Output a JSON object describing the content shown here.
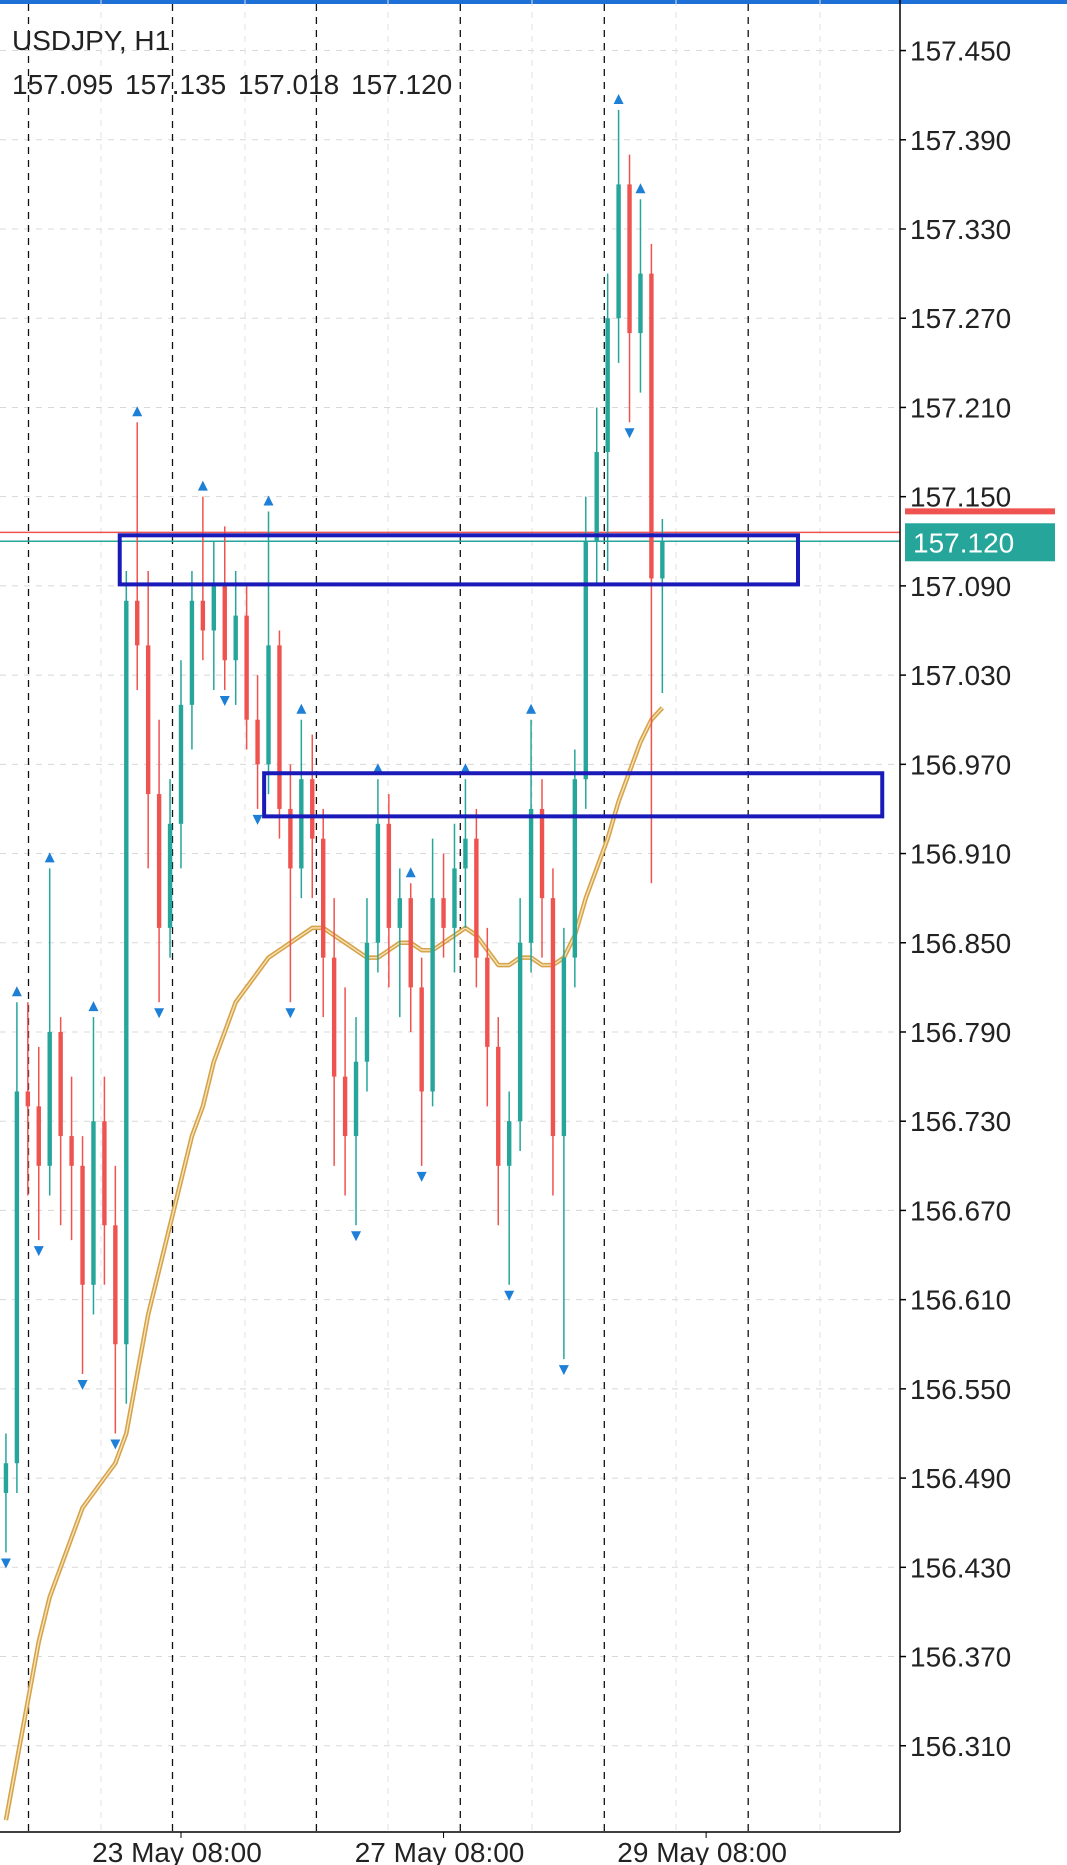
{
  "chart_data": {
    "type": "candlestick",
    "title": "USDJPY, H1",
    "header_values": [
      "157.095",
      "157.135",
      "157.018",
      "157.120"
    ],
    "categories": [
      null,
      null,
      null,
      null,
      null,
      null,
      null,
      null,
      null,
      null,
      null,
      null,
      null,
      null,
      null,
      null,
      "23 May 08:00",
      null,
      null,
      null,
      null,
      null,
      null,
      null,
      null,
      null,
      null,
      null,
      null,
      null,
      null,
      null,
      null,
      null,
      null,
      null,
      null,
      null,
      null,
      null,
      "27 May 08:00",
      null,
      null,
      null,
      null,
      null,
      null,
      null,
      null,
      null,
      null,
      null,
      null,
      null,
      null,
      null,
      null,
      null,
      null,
      null,
      null,
      null,
      null,
      null,
      "29 May 08:00"
    ],
    "open": [
      156.48,
      156.5,
      156.75,
      156.74,
      156.7,
      156.79,
      156.72,
      156.7,
      156.62,
      156.73,
      156.66,
      156.58,
      157.08,
      157.05,
      156.95,
      156.86,
      156.93,
      157.01,
      157.08,
      157.06,
      157.09,
      157.04,
      157.07,
      157.0,
      156.97,
      157.05,
      156.94,
      156.9,
      156.96,
      156.92,
      156.84,
      156.76,
      156.72,
      156.77,
      156.85,
      156.93,
      156.86,
      156.88,
      156.82,
      156.75,
      156.88,
      156.86,
      156.9,
      156.92,
      156.84,
      156.78,
      156.7,
      156.73,
      156.85,
      156.94,
      156.88,
      156.72,
      156.84,
      156.96,
      157.12,
      157.18,
      157.27,
      157.36,
      157.26,
      157.3,
      157.095,
      null,
      null,
      null,
      null
    ],
    "high": [
      156.52,
      156.81,
      156.81,
      156.78,
      156.9,
      156.8,
      156.76,
      156.72,
      156.8,
      156.76,
      156.7,
      157.1,
      157.2,
      157.1,
      157.0,
      156.96,
      157.04,
      157.1,
      157.15,
      157.12,
      157.13,
      157.1,
      157.09,
      157.03,
      157.14,
      157.06,
      156.97,
      157.0,
      156.99,
      156.94,
      156.88,
      156.82,
      156.8,
      156.88,
      156.96,
      156.95,
      156.9,
      156.89,
      156.84,
      156.92,
      156.91,
      156.93,
      156.96,
      156.94,
      156.86,
      156.8,
      156.75,
      156.88,
      157.0,
      156.96,
      156.9,
      156.86,
      156.98,
      157.15,
      157.21,
      157.3,
      157.41,
      157.38,
      157.35,
      157.32,
      157.135,
      null,
      null,
      null,
      null
    ],
    "low": [
      156.44,
      156.48,
      156.68,
      156.65,
      156.68,
      156.66,
      156.65,
      156.56,
      156.6,
      156.62,
      156.52,
      156.54,
      157.02,
      156.9,
      156.81,
      156.84,
      156.9,
      156.98,
      157.04,
      157.02,
      157.02,
      157.01,
      156.98,
      156.94,
      156.95,
      156.92,
      156.81,
      156.88,
      156.88,
      156.8,
      156.7,
      156.68,
      156.66,
      156.75,
      156.83,
      156.82,
      156.8,
      156.79,
      156.7,
      156.74,
      156.84,
      156.83,
      156.86,
      156.82,
      156.74,
      156.66,
      156.62,
      156.71,
      156.83,
      156.84,
      156.68,
      156.57,
      156.82,
      156.94,
      157.09,
      157.1,
      157.24,
      157.2,
      157.22,
      156.89,
      157.018,
      null,
      null,
      null,
      null
    ],
    "close": [
      156.5,
      156.75,
      156.74,
      156.7,
      156.79,
      156.72,
      156.7,
      156.62,
      156.73,
      156.66,
      156.58,
      157.08,
      157.05,
      156.95,
      156.86,
      156.93,
      157.01,
      157.08,
      157.06,
      157.09,
      157.04,
      157.07,
      157.0,
      156.97,
      157.05,
      156.94,
      156.9,
      156.96,
      156.92,
      156.84,
      156.76,
      156.72,
      156.77,
      156.85,
      156.93,
      156.86,
      156.88,
      156.82,
      156.75,
      156.88,
      156.86,
      156.9,
      156.92,
      156.84,
      156.78,
      156.7,
      156.73,
      156.85,
      156.94,
      156.88,
      156.72,
      156.84,
      156.96,
      157.12,
      157.18,
      157.27,
      157.36,
      157.26,
      157.3,
      157.095,
      157.12,
      null,
      null,
      null,
      null
    ],
    "up_color": "#26a69a",
    "down_color": "#ef5350",
    "ma": {
      "color": "#d6a24a",
      "values": [
        156.26,
        156.3,
        156.34,
        156.38,
        156.41,
        156.43,
        156.45,
        156.47,
        156.48,
        156.49,
        156.5,
        156.52,
        156.56,
        156.6,
        156.63,
        156.66,
        156.69,
        156.72,
        156.74,
        156.77,
        156.79,
        156.81,
        156.82,
        156.83,
        156.84,
        156.845,
        156.85,
        156.855,
        156.86,
        156.86,
        156.855,
        156.85,
        156.845,
        156.84,
        156.84,
        156.845,
        156.85,
        156.85,
        156.845,
        156.845,
        156.85,
        156.855,
        156.86,
        156.855,
        156.845,
        156.835,
        156.835,
        156.84,
        156.84,
        156.835,
        156.835,
        156.84,
        156.855,
        156.88,
        156.9,
        156.92,
        156.945,
        156.965,
        156.985,
        157.0,
        157.008,
        null,
        null,
        null,
        null
      ]
    },
    "fractals_up": [
      null,
      156.81,
      null,
      null,
      156.9,
      null,
      null,
      null,
      156.8,
      null,
      null,
      null,
      157.2,
      null,
      null,
      null,
      null,
      null,
      157.15,
      null,
      null,
      null,
      null,
      null,
      157.14,
      null,
      null,
      157.0,
      null,
      null,
      null,
      null,
      null,
      null,
      156.96,
      null,
      null,
      156.89,
      null,
      null,
      null,
      null,
      156.96,
      null,
      null,
      null,
      null,
      null,
      157.0,
      null,
      null,
      null,
      null,
      null,
      null,
      null,
      157.41,
      null,
      157.35,
      null,
      null,
      null,
      null,
      null,
      null
    ],
    "fractals_down": [
      156.44,
      null,
      null,
      156.65,
      null,
      null,
      null,
      156.56,
      null,
      null,
      156.52,
      null,
      null,
      null,
      156.81,
      null,
      null,
      null,
      null,
      null,
      157.02,
      null,
      null,
      156.94,
      null,
      null,
      156.81,
      null,
      null,
      null,
      null,
      null,
      156.66,
      null,
      null,
      null,
      null,
      null,
      156.7,
      null,
      null,
      null,
      null,
      null,
      null,
      null,
      156.62,
      null,
      null,
      null,
      null,
      156.57,
      null,
      null,
      null,
      null,
      null,
      157.2,
      null,
      null,
      null,
      null,
      null,
      null,
      null
    ],
    "fractal_color": "#1e7fd6",
    "bid": 157.12,
    "bid_label": "157.120",
    "bid_color": "#26a69a",
    "ask": 157.126,
    "ask_color": "#ef5350",
    "zones": [
      {
        "x": [
          10.4,
          72.4
        ],
        "y": [
          157.091,
          157.124
        ],
        "color": "#1a1ab8"
      },
      {
        "x": [
          23.6,
          80.1
        ],
        "y": [
          156.935,
          156.964
        ],
        "color": "#1a1ab8"
      }
    ],
    "ylim": [
      156.252,
      157.484
    ],
    "yticks": [
      {
        "value": 157.45,
        "label": "157.450"
      },
      {
        "value": 157.39,
        "label": "157.390"
      },
      {
        "value": 157.33,
        "label": "157.330"
      },
      {
        "value": 157.27,
        "label": "157.270"
      },
      {
        "value": 157.21,
        "label": "157.210"
      },
      {
        "value": 157.15,
        "label": "157.150"
      },
      {
        "value": 157.09,
        "label": "157.090"
      },
      {
        "value": 157.03,
        "label": "157.030"
      },
      {
        "value": 156.97,
        "label": "156.970"
      },
      {
        "value": 156.91,
        "label": "156.910"
      },
      {
        "value": 156.85,
        "label": "156.850"
      },
      {
        "value": 156.79,
        "label": "156.790"
      },
      {
        "value": 156.73,
        "label": "156.730"
      },
      {
        "value": 156.67,
        "label": "156.670"
      },
      {
        "value": 156.61,
        "label": "156.610"
      },
      {
        "value": 156.55,
        "label": "156.550"
      },
      {
        "value": 156.49,
        "label": "156.490"
      },
      {
        "value": 156.43,
        "label": "156.430"
      },
      {
        "value": 156.37,
        "label": "156.370"
      },
      {
        "value": 156.31,
        "label": "156.310"
      }
    ],
    "grid": true
  }
}
